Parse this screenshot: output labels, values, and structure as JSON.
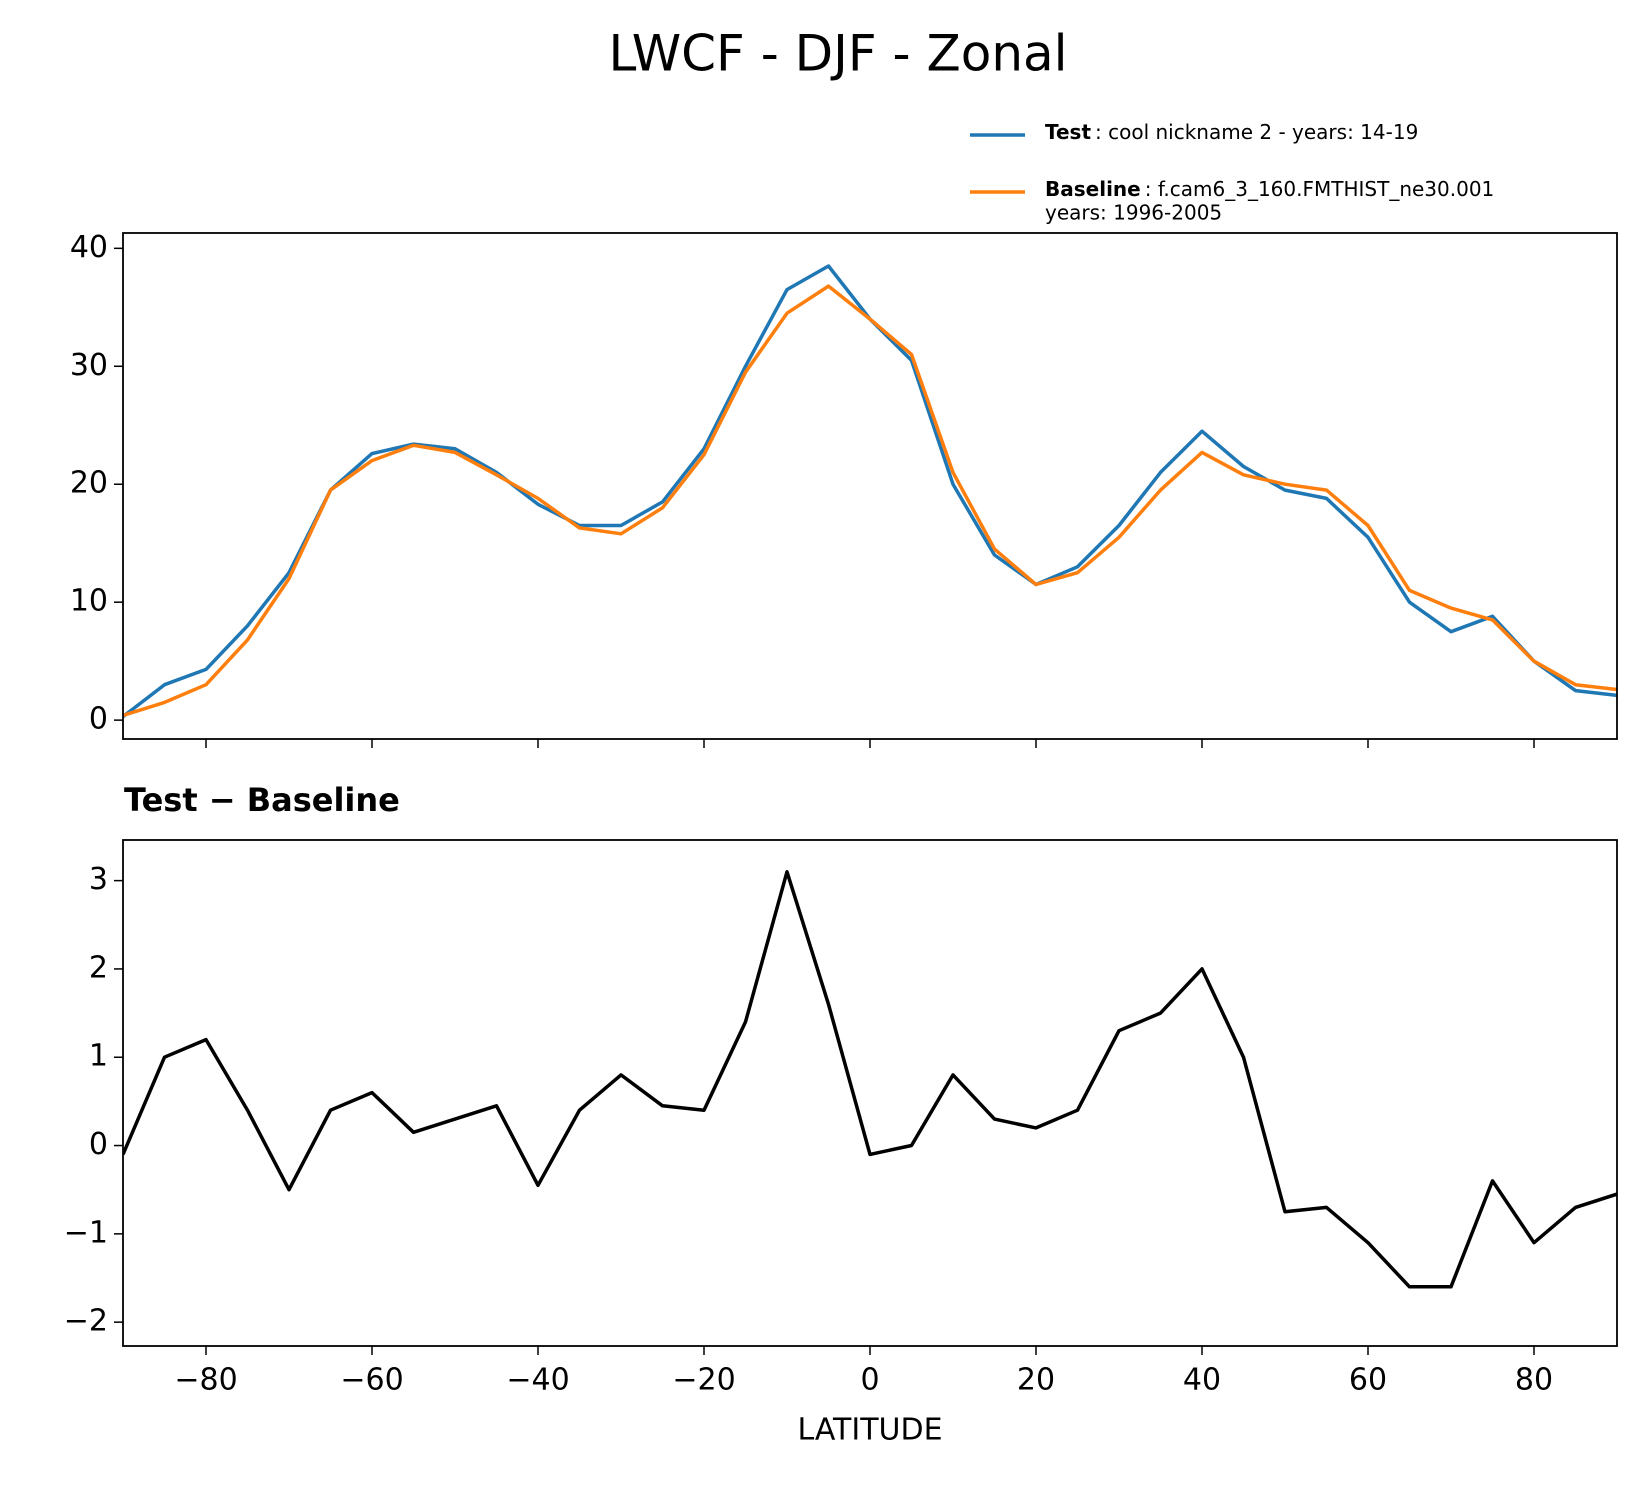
{
  "title": "LWCF - DJF - Zonal",
  "chart_data": [
    {
      "type": "line",
      "x": [
        -90,
        -85,
        -80,
        -75,
        -70,
        -65,
        -60,
        -55,
        -50,
        -45,
        -40,
        -35,
        -30,
        -25,
        -20,
        -15,
        -10,
        -5,
        0,
        5,
        10,
        15,
        20,
        25,
        30,
        35,
        40,
        45,
        50,
        55,
        60,
        65,
        70,
        75,
        80,
        85,
        90
      ],
      "series": [
        {
          "name": "Test",
          "legend_text": [
            ": cool nickname 2 - years: 14-19"
          ],
          "color": "#1f77b4",
          "values": [
            0.3,
            3.0,
            4.3,
            8.0,
            12.5,
            19.5,
            22.6,
            23.4,
            23.0,
            21.0,
            18.3,
            16.5,
            16.5,
            18.5,
            23.0,
            30.0,
            36.5,
            38.5,
            34.0,
            30.5,
            20.0,
            14.0,
            11.5,
            13.0,
            16.5,
            21.0,
            24.5,
            21.5,
            19.5,
            18.8,
            15.5,
            10.0,
            7.5,
            8.8,
            5.0,
            2.5,
            2.1
          ]
        },
        {
          "name": "Baseline",
          "legend_text": [
            ": f.cam6_3_160.FMTHIST_ne30.001",
            "years: 1996-2005"
          ],
          "color": "#ff7f0e",
          "values": [
            0.4,
            1.5,
            3.0,
            6.8,
            12.0,
            19.5,
            22.0,
            23.3,
            22.7,
            20.8,
            18.8,
            16.3,
            15.8,
            18.0,
            22.5,
            29.5,
            34.5,
            36.8,
            34.0,
            31.0,
            21.0,
            14.5,
            11.5,
            12.5,
            15.5,
            19.5,
            22.7,
            20.8,
            20.0,
            19.5,
            16.5,
            11.0,
            9.5,
            8.5,
            5.0,
            3.0,
            2.6
          ]
        }
      ],
      "xlim": [
        -90,
        90
      ],
      "xticks": [
        -80,
        -60,
        -40,
        -20,
        0,
        20,
        40,
        60,
        80
      ],
      "ylim": [
        -1.6,
        41.3
      ],
      "yticks": [
        0,
        10,
        20,
        30,
        40
      ]
    },
    {
      "type": "line",
      "subtitle": "Test − Baseline",
      "xlabel": "LATITUDE",
      "x": [
        -90,
        -85,
        -80,
        -75,
        -70,
        -65,
        -60,
        -55,
        -50,
        -45,
        -40,
        -35,
        -30,
        -25,
        -20,
        -15,
        -10,
        -5,
        0,
        5,
        10,
        15,
        20,
        25,
        30,
        35,
        40,
        45,
        50,
        55,
        60,
        65,
        70,
        75,
        80,
        85,
        90
      ],
      "series": [
        {
          "color": "#000000",
          "values": [
            -0.1,
            1.0,
            1.2,
            0.4,
            -0.5,
            0.4,
            0.6,
            0.15,
            0.3,
            0.45,
            -0.45,
            0.4,
            0.8,
            0.45,
            0.4,
            1.4,
            3.1,
            1.6,
            -0.1,
            0.0,
            0.8,
            0.3,
            0.2,
            0.4,
            1.3,
            1.5,
            2.0,
            1.0,
            -0.75,
            -0.7,
            -1.1,
            -1.6,
            -1.6,
            -0.4,
            -1.1,
            -0.7,
            -0.55
          ]
        }
      ],
      "xlim": [
        -90,
        90
      ],
      "xticks": [
        {
          "value": -80,
          "label": "−80"
        },
        {
          "value": -60,
          "label": "−60"
        },
        {
          "value": -40,
          "label": "−40"
        },
        {
          "value": -20,
          "label": "−20"
        },
        0,
        20,
        40,
        60,
        80
      ],
      "ylim": [
        -2.27,
        3.46
      ],
      "yticks": [
        {
          "value": -2,
          "label": "−2"
        },
        {
          "value": -1,
          "label": "−1"
        },
        0,
        1,
        2,
        3
      ]
    }
  ]
}
